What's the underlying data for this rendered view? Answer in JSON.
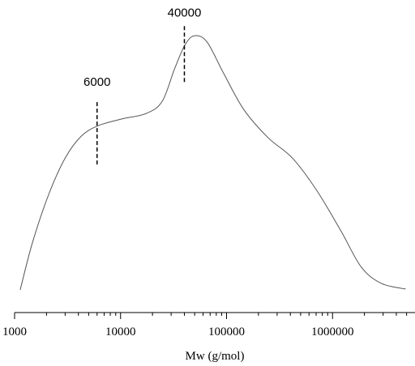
{
  "chart_data": {
    "type": "line",
    "x_label": "Mw (g/mol)",
    "log_x": true,
    "xlim": [
      1000,
      6000000
    ],
    "ylim": [
      0,
      1.05
    ],
    "xticks": [
      1000,
      10000,
      100000,
      1000000
    ],
    "xminor_ticks": [
      2000,
      3000,
      4000,
      5000,
      6000,
      7000,
      8000,
      9000,
      20000,
      30000,
      40000,
      50000,
      60000,
      70000,
      80000,
      90000,
      200000,
      300000,
      400000,
      500000,
      600000,
      700000,
      800000,
      900000,
      2000000,
      3000000,
      4000000,
      5000000
    ],
    "series": [
      {
        "color": "#555555",
        "x": [
          1130,
          1470,
          2100,
          3000,
          4250,
          6150,
          10200,
          17400,
          24700,
          32300,
          40700,
          50100,
          65500,
          93600,
          145000,
          246000,
          418000,
          707000,
          1200000,
          1870000,
          2900000,
          4900000
        ],
        "values": [
          0.082,
          0.251,
          0.427,
          0.558,
          0.637,
          0.675,
          0.699,
          0.719,
          0.763,
          0.88,
          0.968,
          1.0,
          0.977,
          0.865,
          0.734,
          0.632,
          0.558,
          0.442,
          0.295,
          0.164,
          0.105,
          0.085
        ]
      }
    ],
    "markers": [
      {
        "x": 6000
      },
      {
        "x": 40000
      }
    ]
  }
}
